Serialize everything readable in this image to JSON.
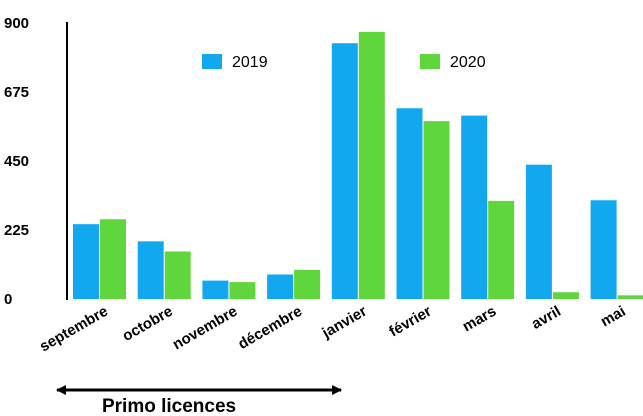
{
  "chart_data": {
    "type": "bar",
    "categories": [
      "septembre",
      "octobre",
      "novembre",
      "décembre",
      "janvier",
      "février",
      "mars",
      "avril",
      "mai"
    ],
    "series": [
      {
        "name": "2019",
        "color": "#12a8f0",
        "values": [
          244,
          188,
          60,
          80,
          834,
          622,
          598,
          438,
          322
        ]
      },
      {
        "name": "2020",
        "color": "#5fd63b",
        "values": [
          260,
          155,
          55,
          95,
          871,
          580,
          320,
          22,
          12
        ]
      }
    ],
    "ylim": [
      0,
      900
    ],
    "yticks": [
      0,
      225,
      450,
      675,
      900
    ],
    "grid": false,
    "legend": "top",
    "title": "",
    "xlabel": "",
    "ylabel": "",
    "annotation": {
      "text": "Primo licences",
      "from": "septembre",
      "to": "décembre"
    }
  }
}
